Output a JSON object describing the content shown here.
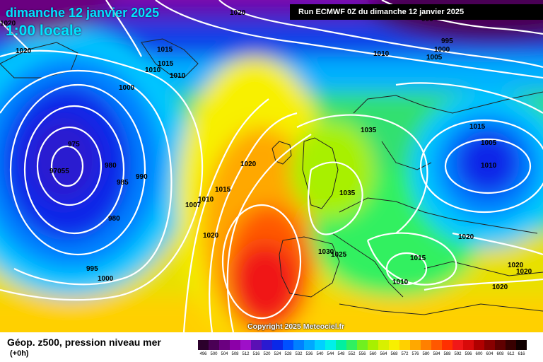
{
  "title": {
    "date": "dimanche 12 janvier 2025",
    "time": "1:00 locale"
  },
  "run_info": "Run ECMWF 0Z du dimanche 12 janvier 2025",
  "copyright": "Copyright 2025 Meteociel.fr",
  "footer": {
    "field": "Géop. z500, pression niveau mer",
    "lead": "(+0h)"
  },
  "legend": {
    "values": [
      "496",
      "500",
      "504",
      "508",
      "512",
      "516",
      "520",
      "524",
      "528",
      "532",
      "536",
      "540",
      "544",
      "548",
      "552",
      "556",
      "560",
      "564",
      "568",
      "572",
      "576",
      "580",
      "584",
      "588",
      "592",
      "596",
      "600",
      "604",
      "608",
      "612",
      "616"
    ],
    "colors": [
      "#2b002b",
      "#4a0055",
      "#6b0080",
      "#8c00a8",
      "#9e10c8",
      "#5a10b4",
      "#2a1ad0",
      "#0a28e8",
      "#0050ff",
      "#0080ff",
      "#00a8ff",
      "#00d0ff",
      "#00f0e8",
      "#00f0a0",
      "#30f060",
      "#70f020",
      "#a8f000",
      "#d8f000",
      "#f8f000",
      "#ffd000",
      "#ffa800",
      "#ff8000",
      "#ff5800",
      "#ff3000",
      "#f01818",
      "#d80a0a",
      "#b00000",
      "#880000",
      "#600000",
      "#380000",
      "#100000"
    ]
  },
  "isobar_labels": [
    "1020",
    "1020",
    "1020",
    "1015",
    "1015",
    "1010",
    "1010",
    "1000",
    "975",
    "97055",
    "980",
    "985",
    "990",
    "980",
    "995",
    "1000",
    "1020",
    "1015",
    "1010",
    "1007",
    "1020",
    "1035",
    "1035",
    "1030",
    "1025",
    "1015",
    "1005",
    "1010",
    "1020",
    "1015",
    "1010",
    "1020",
    "1020",
    "1020",
    "995",
    "1000",
    "1005",
    "1010",
    "990"
  ]
}
